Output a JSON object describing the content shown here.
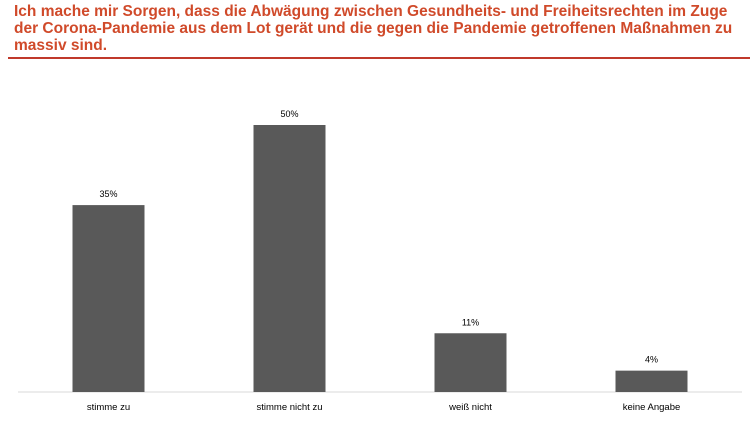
{
  "chart_data": {
    "type": "bar",
    "title": "Ich mache mir Sorgen, dass die Abwägung zwischen Gesundheits- und Freiheitsrechten im Zuge der Corona-Pandemie aus dem Lot gerät und die gegen die Pandemie getroffenen Maßnahmen zu massiv sind.",
    "categories": [
      "stimme zu",
      "stimme nicht zu",
      "weiß nicht",
      "keine Angabe"
    ],
    "values": [
      35,
      50,
      11,
      4
    ],
    "value_labels": [
      "35%",
      "50%",
      "11%",
      "4%"
    ],
    "unit": "%",
    "ylim": [
      0,
      50
    ],
    "grid": false,
    "colors": {
      "title": "#d04a2a",
      "bar": "#595959",
      "rule": "#c0392b"
    }
  }
}
